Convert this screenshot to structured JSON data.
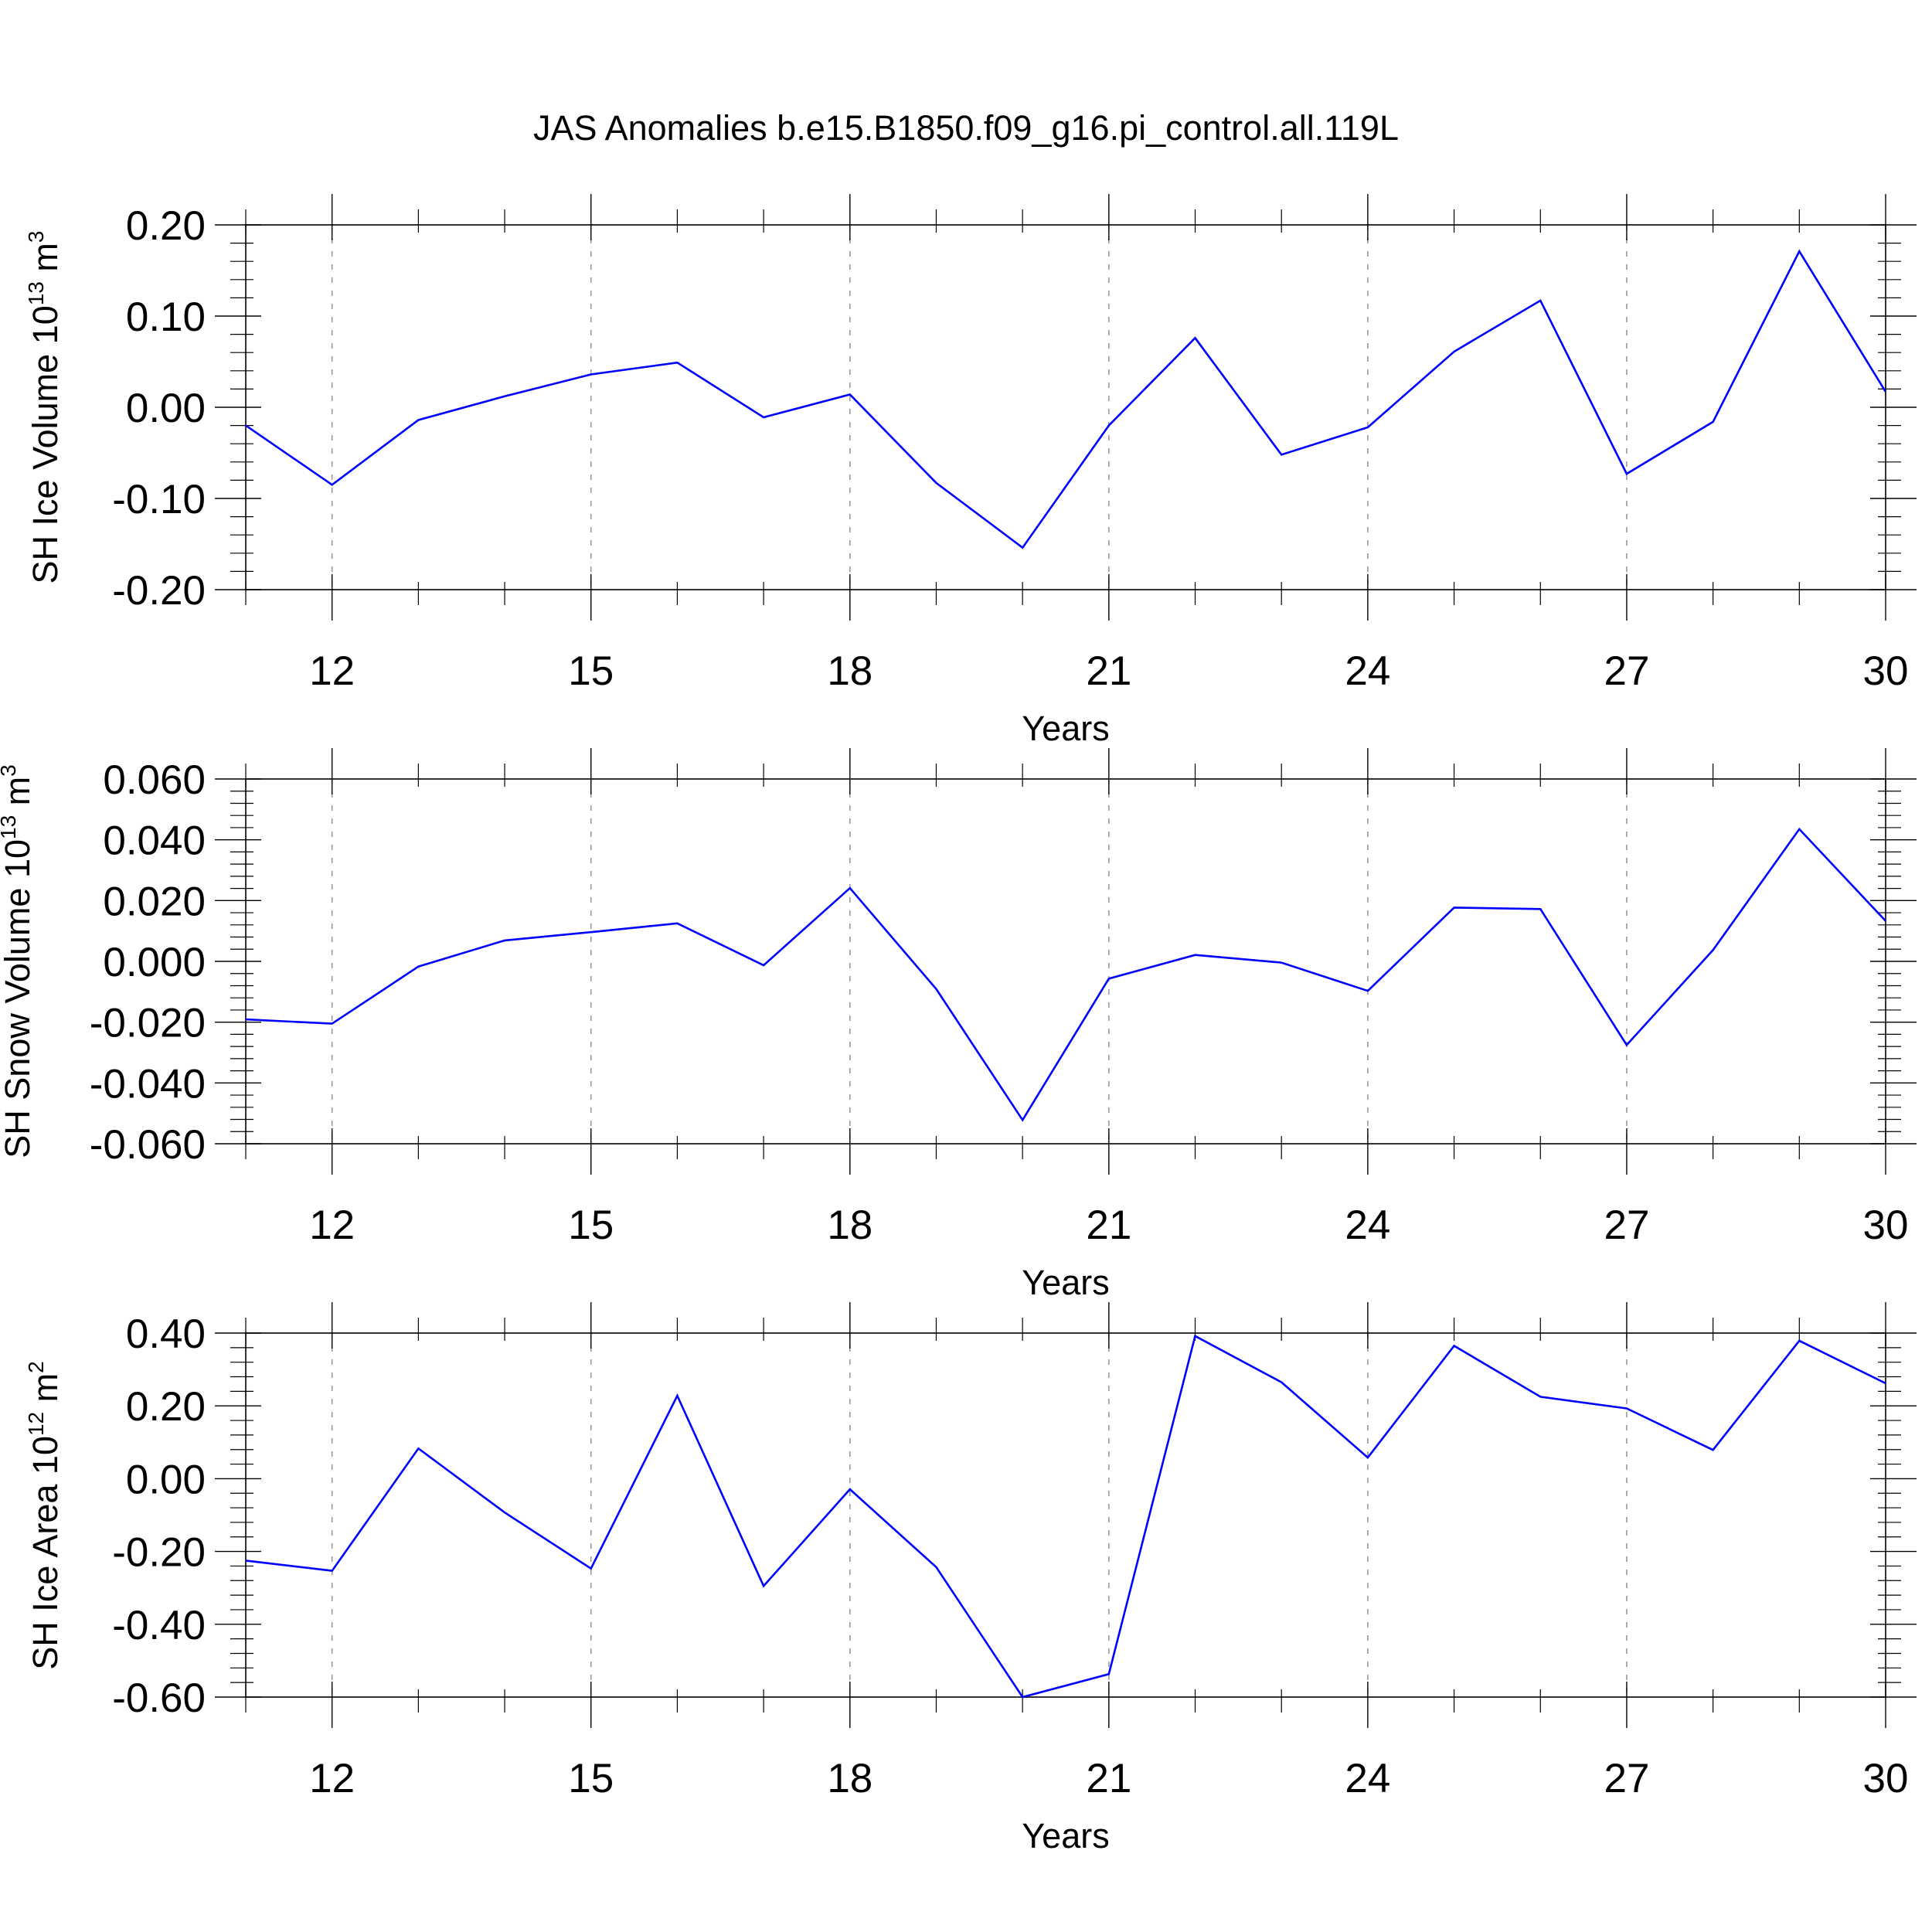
{
  "title": "JAS Anomalies b.e15.B1850.f09_g16.pi_control.all.119L",
  "chart_data": [
    {
      "type": "line",
      "name": "ice-volume",
      "ylabel": "SH Ice Volume 10",
      "ylabel_exp": "13",
      "ylabel_unit": "m",
      "ylabel_unit_exp": "3",
      "xlabel": "Years",
      "xlim": [
        11,
        30
      ],
      "ylim": [
        -0.2,
        0.2
      ],
      "xticks": [
        12,
        15,
        18,
        21,
        24,
        27,
        30
      ],
      "yticks": [
        "0.20",
        "0.10",
        "0.00",
        "-0.10",
        "-0.20"
      ],
      "ytick_values": [
        0.2,
        0.1,
        0.0,
        -0.1,
        -0.2
      ],
      "x": [
        11,
        12,
        13,
        14,
        15,
        16,
        17,
        18,
        19,
        20,
        21,
        22,
        23,
        24,
        25,
        26,
        27,
        28,
        29,
        30
      ],
      "y": [
        -0.02,
        -0.085,
        -0.014,
        0.012,
        0.036,
        0.049,
        -0.011,
        0.014,
        -0.083,
        -0.154,
        -0.02,
        0.076,
        -0.052,
        -0.022,
        0.061,
        0.117,
        -0.073,
        -0.016,
        0.171,
        0.017
      ],
      "color": "#0000ff"
    },
    {
      "type": "line",
      "name": "snow-volume",
      "ylabel": "SH Snow Volume 10",
      "ylabel_exp": "13",
      "ylabel_unit": "m",
      "ylabel_unit_exp": "3",
      "xlabel": "Years",
      "xlim": [
        11,
        30
      ],
      "ylim": [
        -0.06,
        0.06
      ],
      "xticks": [
        12,
        15,
        18,
        21,
        24,
        27,
        30
      ],
      "yticks": [
        "0.060",
        "0.040",
        "0.020",
        "0.000",
        "-0.020",
        "-0.040",
        "-0.060"
      ],
      "ytick_values": [
        0.06,
        0.04,
        0.02,
        0.0,
        -0.02,
        -0.04,
        -0.06
      ],
      "x": [
        11,
        12,
        13,
        14,
        15,
        16,
        17,
        18,
        19,
        20,
        21,
        22,
        23,
        24,
        25,
        26,
        27,
        28,
        29,
        30
      ],
      "y": [
        -0.0191,
        -0.0205,
        -0.0017,
        0.0069,
        0.0096,
        0.0125,
        -0.0013,
        0.0241,
        -0.0091,
        -0.0522,
        -0.0057,
        0.0021,
        -0.0004,
        -0.0097,
        0.0177,
        0.0172,
        -0.0275,
        0.0037,
        0.0435,
        0.0133
      ],
      "color": "#0000ff"
    },
    {
      "type": "line",
      "name": "ice-area",
      "ylabel": "SH Ice Area 10",
      "ylabel_exp": "12",
      "ylabel_unit": "m",
      "ylabel_unit_exp": "2",
      "xlabel": "Years",
      "xlim": [
        11,
        30
      ],
      "ylim": [
        -0.6,
        0.4
      ],
      "xticks": [
        12,
        15,
        18,
        21,
        24,
        27,
        30
      ],
      "yticks": [
        "0.40",
        "0.20",
        "0.00",
        "-0.20",
        "-0.40",
        "-0.60"
      ],
      "ytick_values": [
        0.4,
        0.2,
        0.0,
        -0.2,
        -0.4,
        -0.6
      ],
      "x": [
        11,
        12,
        13,
        14,
        15,
        16,
        17,
        18,
        19,
        20,
        21,
        22,
        23,
        24,
        25,
        26,
        27,
        28,
        29,
        30
      ],
      "y": [
        -0.225,
        -0.253,
        0.083,
        -0.093,
        -0.247,
        0.228,
        -0.295,
        -0.029,
        -0.243,
        -0.6,
        -0.537,
        0.392,
        0.265,
        0.058,
        0.365,
        0.225,
        0.193,
        0.079,
        0.379,
        0.262
      ],
      "color": "#0000ff"
    }
  ]
}
